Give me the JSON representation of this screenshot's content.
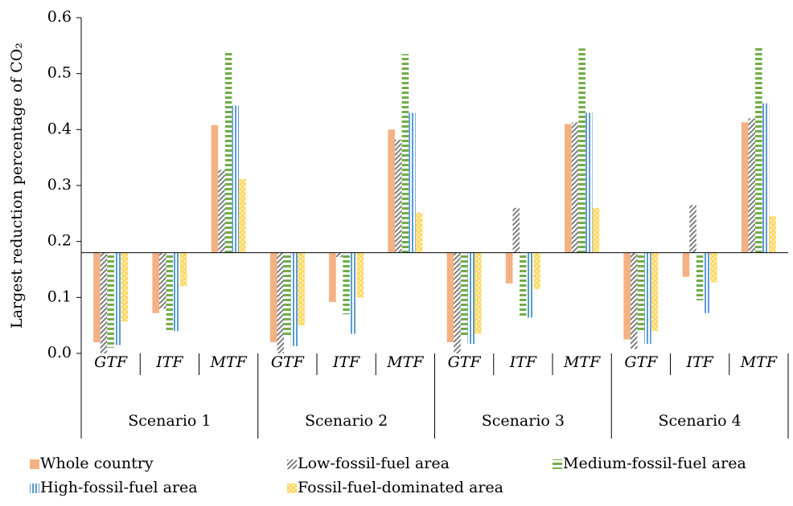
{
  "chart_data": {
    "type": "bar",
    "ylabel": "Largest reduction percentage of CO₂",
    "categories": [
      "GTF",
      "ITF",
      "MTF",
      "GTF",
      "ITF",
      "MTF",
      "GTF",
      "ITF",
      "MTF",
      "GTF",
      "ITF",
      "MTF"
    ],
    "groups": [
      "Scenario 1",
      "Scenario 2",
      "Scenario 3",
      "Scenario 4"
    ],
    "baseline": 0.18,
    "ylim": [
      0,
      0.6
    ],
    "yticks": [
      {
        "value": 0,
        "label": "0.0"
      },
      0.1,
      0.2,
      0.3,
      0.4,
      0.5,
      0.6
    ],
    "series": [
      {
        "name": "Whole country",
        "color": "#f4b183",
        "pattern": "solid",
        "values": [
          0.02,
          0.072,
          0.408,
          0.02,
          0.092,
          0.4,
          0.02,
          0.125,
          0.41,
          0.025,
          0.137,
          0.413
        ]
      },
      {
        "name": "Low-fossil-fuel area",
        "color": "#7f7f7f",
        "pattern": "diagonal",
        "values": [
          0.0,
          0.08,
          0.328,
          0.0,
          0.172,
          0.382,
          0.0,
          0.26,
          0.413,
          0.008,
          0.265,
          0.42
        ]
      },
      {
        "name": "Medium-fossil-fuel area",
        "color": "#70ad47",
        "pattern": "horizontal",
        "values": [
          0.01,
          0.04,
          0.54,
          0.03,
          0.07,
          0.535,
          0.03,
          0.065,
          0.545,
          0.04,
          0.095,
          0.547
        ]
      },
      {
        "name": "High-fossil-fuel area",
        "color": "#5b9bd5",
        "pattern": "vertical",
        "values": [
          0.015,
          0.04,
          0.443,
          0.013,
          0.035,
          0.43,
          0.017,
          0.064,
          0.43,
          0.017,
          0.072,
          0.447
        ]
      },
      {
        "name": "Fossil-fuel-dominated area",
        "color": "#ffd966",
        "pattern": "dots",
        "values": [
          0.057,
          0.12,
          0.312,
          0.05,
          0.1,
          0.252,
          0.035,
          0.115,
          0.26,
          0.04,
          0.127,
          0.245
        ]
      }
    ],
    "legend": "bottom"
  }
}
